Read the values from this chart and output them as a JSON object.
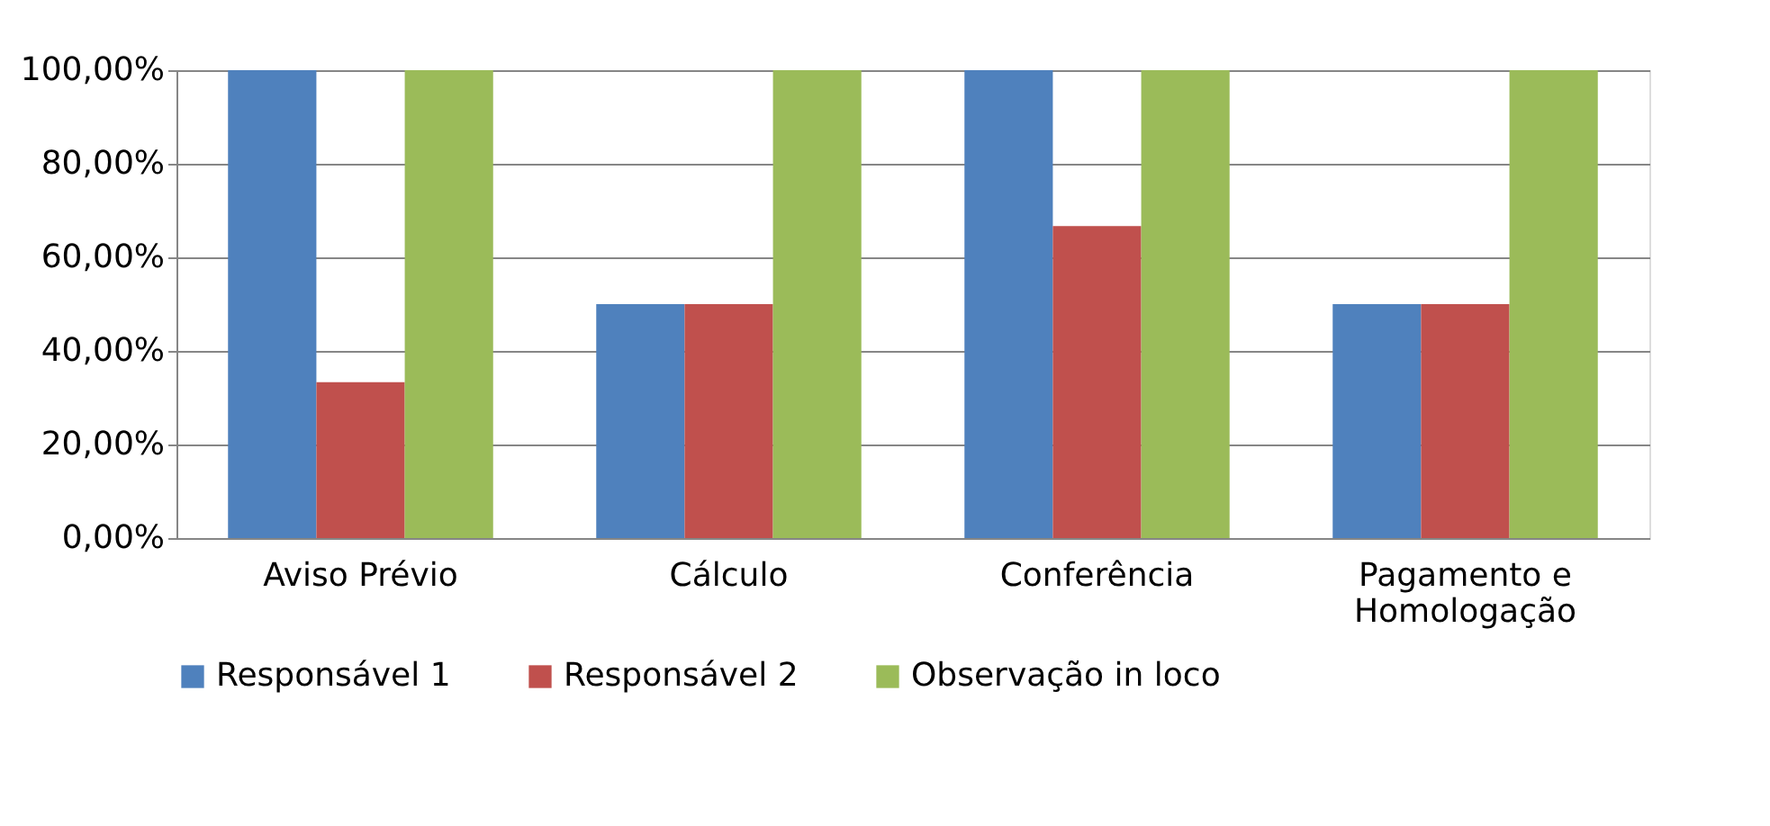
{
  "chart_data": {
    "type": "bar",
    "categories": [
      "Aviso Prévio",
      "Cálculo",
      "Conferência",
      "Pagamento e Homologação"
    ],
    "series": [
      {
        "name": "Responsável 1",
        "color": "#4f81bd",
        "values": [
          100,
          50,
          100,
          50
        ]
      },
      {
        "name": "Responsável 2",
        "color": "#c0504d",
        "values": [
          33.3,
          50,
          66.7,
          50
        ]
      },
      {
        "name": "Observação in loco",
        "color": "#9bbb59",
        "values": [
          100,
          100,
          100,
          100
        ]
      }
    ],
    "ylim": [
      0,
      100
    ],
    "yticks": [
      {
        "value": 0,
        "label": "0,00%"
      },
      {
        "value": 20,
        "label": "20,00%"
      },
      {
        "value": 40,
        "label": "40,00%"
      },
      {
        "value": 60,
        "label": "60,00%"
      },
      {
        "value": 80,
        "label": "80,00%"
      },
      {
        "value": 100,
        "label": "100,00%"
      }
    ],
    "grid": "y",
    "legend": "bottom"
  }
}
